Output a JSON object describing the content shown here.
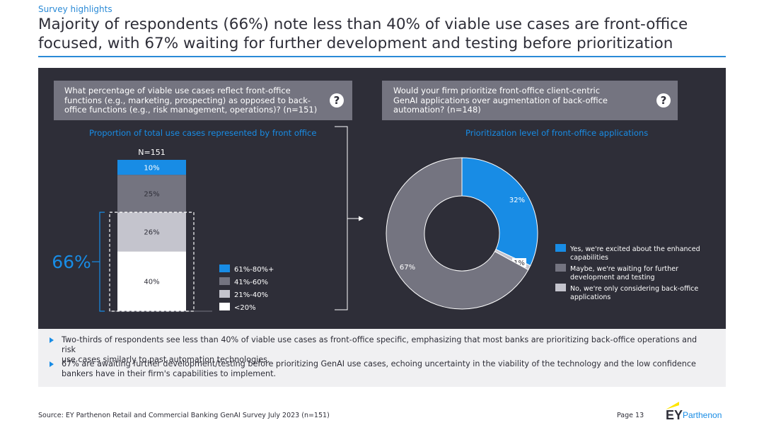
{
  "header": {
    "kicker": "Survey highlights",
    "title_line1": "Majority of respondents (66%) note less than 40% of viable use cases are front-office",
    "title_line2": "focused, with 67% waiting for further development and testing before prioritization"
  },
  "left": {
    "question": [
      "What percentage of viable use cases reflect front-office",
      "functions (e.g., marketing, prospecting) as opposed to back-",
      "office functions (e.g., risk management, operations)? (n=151)"
    ],
    "question_icon": "question-mark-icon",
    "subtitle": "Proportion of total use cases represented by front office"
  },
  "right": {
    "question": [
      "Would your firm prioritize front-office client-centric",
      "GenAI applications over augmentation of back-office",
      "automation? (n=148)"
    ],
    "question_icon": "question-mark-icon",
    "subtitle": "Prioritization level of front-office applications"
  },
  "chart_data": [
    {
      "type": "bar",
      "stacked": true,
      "sample_label": "N=151",
      "categories": [
        "N=151"
      ],
      "series": [
        {
          "name": "<20%",
          "values": [
            40
          ],
          "label": "40%",
          "color": "#ffffff"
        },
        {
          "name": "21%-40%",
          "values": [
            26
          ],
          "label": "26%",
          "color": "#c4c4cd"
        },
        {
          "name": "41%-60%",
          "values": [
            25
          ],
          "label": "25%",
          "color": "#747480"
        },
        {
          "name": "61%-80%+",
          "values": [
            10
          ],
          "label": "10%",
          "color": "#188ce5"
        }
      ],
      "legend_order": [
        "61%-80%+",
        "41%-60%",
        "21%-40%",
        "<20%"
      ],
      "legend_placement": "right",
      "bracket_value": 66,
      "bracket_label": "66%",
      "ylim": [
        0,
        101
      ]
    },
    {
      "type": "pie",
      "donut": true,
      "slices": [
        {
          "name": "Yes, we're excited about the enhanced capabilities",
          "value": 32,
          "label": "32%",
          "color": "#188ce5"
        },
        {
          "name": "No, we're only considering back-office applications",
          "value": 1,
          "label": "1%",
          "color": "#c4c4cd"
        },
        {
          "name": "Maybe, we're waiting for further development and testing",
          "value": 67,
          "label": "67%",
          "color": "#747480"
        }
      ],
      "legend": [
        {
          "text": [
            "Yes, we're excited about the enhanced",
            "capabilities"
          ],
          "color": "#188ce5"
        },
        {
          "text": [
            "Maybe, we're waiting for further",
            "development and testing"
          ],
          "color": "#747480"
        },
        {
          "text": [
            "No, we're only considering back-office",
            "applications"
          ],
          "color": "#c4c4cd"
        }
      ],
      "legend_placement": "right"
    }
  ],
  "insights": [
    {
      "lines": [
        "Two-thirds of respondents see less than 40% of viable use cases as front-office specific, emphasizing that most banks are prioritizing back-office operations and risk",
        "use cases similarly to past automation technologies."
      ]
    },
    {
      "lines": [
        "67% are awaiting further development/testing before prioritizing GenAI use cases, echoing uncertainty in the viability of the technology and the low confidence",
        "bankers have in their firm's capabilities to implement."
      ]
    }
  ],
  "footer": {
    "source": "Source: EY Parthenon Retail and Commercial Banking GenAI Survey July 2023 (n=151)",
    "page": "Page 13",
    "logo_mark": "EY",
    "logo_text": "Parthenon"
  },
  "colors": {
    "accent_blue": "#188ce5",
    "dark_panel": "#2e2e38",
    "mid_gray": "#747480",
    "light_gray": "#c4c4cd",
    "ey_yellow": "#ffe600"
  }
}
